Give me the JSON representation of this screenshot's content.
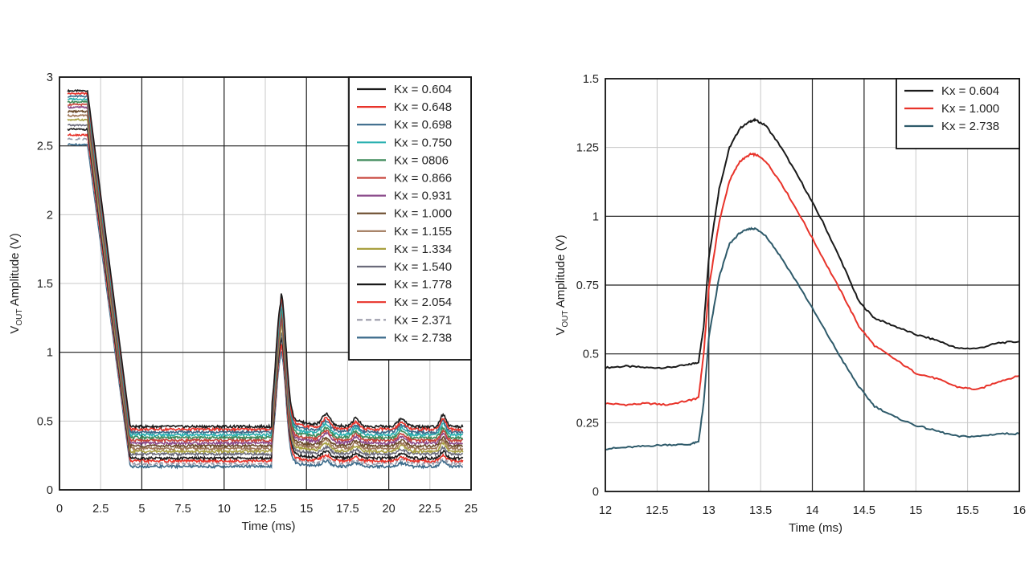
{
  "chart_data": [
    {
      "type": "line",
      "title": "",
      "xlabel": "Time (ms)",
      "ylabel_main": "V",
      "ylabel_sub": "OUT",
      "ylabel_rest": " Amplitude (V)",
      "xlim": [
        0,
        25
      ],
      "ylim": [
        0,
        3
      ],
      "x_ticks": [
        0,
        2.5,
        5,
        7.5,
        10,
        12.5,
        15,
        17.5,
        20,
        22.5,
        25
      ],
      "x_tick_labels": [
        "0",
        "2.5",
        "5",
        "7.5",
        "10",
        "12.5",
        "15",
        "17.5",
        "20",
        "22.5",
        "25"
      ],
      "y_ticks": [
        0,
        0.5,
        1,
        1.5,
        2,
        2.5,
        3
      ],
      "y_tick_labels": [
        "0",
        "0.5",
        "1",
        "1.5",
        "2",
        "2.5",
        "3"
      ],
      "major_grid_x": [
        5,
        10,
        15,
        20
      ],
      "major_grid_y": [
        1,
        2.5
      ],
      "minor_grid": true,
      "legend_position": "top-right",
      "series": [
        {
          "name": "Kx = 0.604",
          "color": "#1a1a1a",
          "dash": "",
          "start": 2.9,
          "base": 0.46,
          "peak": 1.35,
          "b2": 0.09
        },
        {
          "name": "Kx = 0.648",
          "color": "#e8332a",
          "dash": "",
          "start": 2.88,
          "base": 0.44,
          "peak": 1.33,
          "b2": 0.08
        },
        {
          "name": "Kx = 0.698",
          "color": "#3a6a8a",
          "dash": "",
          "start": 2.86,
          "base": 0.42,
          "peak": 1.31,
          "b2": 0.08
        },
        {
          "name": "Kx = 0.750",
          "color": "#2ab0b0",
          "dash": "",
          "start": 2.84,
          "base": 0.4,
          "peak": 1.28,
          "b2": 0.08
        },
        {
          "name": "Kx = 0806",
          "color": "#3e8a5a",
          "dash": "",
          "start": 2.82,
          "base": 0.38,
          "peak": 1.26,
          "b2": 0.07
        },
        {
          "name": "Kx = 0.866",
          "color": "#c8443a",
          "dash": "",
          "start": 2.8,
          "base": 0.36,
          "peak": 1.24,
          "b2": 0.07
        },
        {
          "name": "Kx = 0.931",
          "color": "#8a4a8a",
          "dash": "",
          "start": 2.78,
          "base": 0.34,
          "peak": 1.22,
          "b2": 0.07
        },
        {
          "name": "Kx = 1.000",
          "color": "#6a4a2a",
          "dash": "",
          "start": 2.75,
          "base": 0.32,
          "peak": 1.2,
          "b2": 0.06
        },
        {
          "name": "Kx = 1.155",
          "color": "#a0785a",
          "dash": "",
          "start": 2.72,
          "base": 0.3,
          "peak": 1.17,
          "b2": 0.06
        },
        {
          "name": "Kx = 1.334",
          "color": "#a8a040",
          "dash": "",
          "start": 2.69,
          "base": 0.28,
          "peak": 1.14,
          "b2": 0.06
        },
        {
          "name": "Kx = 1.540",
          "color": "#6a6a7a",
          "dash": "",
          "start": 2.65,
          "base": 0.26,
          "peak": 1.1,
          "b2": 0.05
        },
        {
          "name": "Kx = 1.778",
          "color": "#1a1a1a",
          "dash": "",
          "start": 2.62,
          "base": 0.23,
          "peak": 1.06,
          "b2": 0.05
        },
        {
          "name": "Kx = 2.054",
          "color": "#e8332a",
          "dash": "",
          "start": 2.58,
          "base": 0.21,
          "peak": 1.02,
          "b2": 0.04
        },
        {
          "name": "Kx = 2.371",
          "color": "#9a9aa8",
          "dash": "7,4",
          "start": 2.55,
          "base": 0.19,
          "peak": 0.99,
          "b2": 0.04
        },
        {
          "name": "Kx = 2.738",
          "color": "#3a6a8a",
          "dash": "",
          "start": 2.51,
          "base": 0.17,
          "peak": 0.96,
          "b2": 0.04
        }
      ]
    },
    {
      "type": "line",
      "title": "",
      "xlabel": "Time (ms)",
      "ylabel_main": "V",
      "ylabel_sub": "OUT",
      "ylabel_rest": " Amplitude (V)",
      "xlim": [
        12,
        16
      ],
      "ylim": [
        0,
        1.5
      ],
      "x_ticks": [
        12,
        12.5,
        13,
        13.5,
        14,
        14.5,
        15,
        15.5,
        16
      ],
      "x_tick_labels": [
        "12",
        "12.5",
        "13",
        "13.5",
        "14",
        "14.5",
        "15",
        "15.5",
        "16"
      ],
      "y_ticks": [
        0,
        0.25,
        0.5,
        0.75,
        1,
        1.25,
        1.5
      ],
      "y_tick_labels": [
        "0",
        "0.25",
        "0.5",
        "0.75",
        "1",
        "1.25",
        "1.5"
      ],
      "major_grid_x": [
        13,
        14,
        14.5
      ],
      "major_grid_y": [
        0.5,
        0.75,
        1
      ],
      "minor_grid": true,
      "legend_position": "top-right",
      "series": [
        {
          "name": "Kx = 0.604",
          "color": "#1a1a1a",
          "x": [
            12,
            12.2,
            12.4,
            12.6,
            12.8,
            12.9,
            12.95,
            13.0,
            13.1,
            13.2,
            13.3,
            13.4,
            13.45,
            13.55,
            13.7,
            13.9,
            14.1,
            14.3,
            14.45,
            14.6,
            14.8,
            15.0,
            15.2,
            15.4,
            15.6,
            15.8,
            16.0
          ],
          "y": [
            0.45,
            0.455,
            0.45,
            0.45,
            0.46,
            0.47,
            0.6,
            0.85,
            1.1,
            1.25,
            1.32,
            1.345,
            1.35,
            1.33,
            1.25,
            1.12,
            0.98,
            0.82,
            0.69,
            0.63,
            0.6,
            0.57,
            0.55,
            0.52,
            0.52,
            0.54,
            0.545
          ]
        },
        {
          "name": "Kx = 1.000",
          "color": "#e8332a",
          "x": [
            12,
            12.2,
            12.4,
            12.6,
            12.8,
            12.9,
            12.95,
            13.0,
            13.1,
            13.2,
            13.3,
            13.4,
            13.45,
            13.55,
            13.7,
            13.9,
            14.1,
            14.3,
            14.45,
            14.6,
            14.8,
            15.0,
            15.2,
            15.4,
            15.6,
            15.8,
            16.0
          ],
          "y": [
            0.32,
            0.315,
            0.32,
            0.315,
            0.33,
            0.34,
            0.5,
            0.74,
            0.98,
            1.13,
            1.2,
            1.225,
            1.225,
            1.2,
            1.12,
            0.99,
            0.85,
            0.71,
            0.6,
            0.53,
            0.48,
            0.43,
            0.41,
            0.38,
            0.37,
            0.4,
            0.42
          ]
        },
        {
          "name": "Kx = 2.738",
          "color": "#2e5a6a",
          "x": [
            12,
            12.2,
            12.4,
            12.6,
            12.8,
            12.9,
            12.95,
            13.0,
            13.1,
            13.2,
            13.3,
            13.4,
            13.45,
            13.55,
            13.7,
            13.9,
            14.1,
            14.3,
            14.45,
            14.6,
            14.8,
            15.0,
            15.2,
            15.4,
            15.6,
            15.8,
            16.0
          ],
          "y": [
            0.155,
            0.16,
            0.165,
            0.17,
            0.17,
            0.18,
            0.32,
            0.56,
            0.78,
            0.9,
            0.94,
            0.955,
            0.955,
            0.93,
            0.85,
            0.73,
            0.6,
            0.47,
            0.38,
            0.31,
            0.27,
            0.24,
            0.22,
            0.2,
            0.2,
            0.21,
            0.21
          ]
        }
      ]
    }
  ]
}
